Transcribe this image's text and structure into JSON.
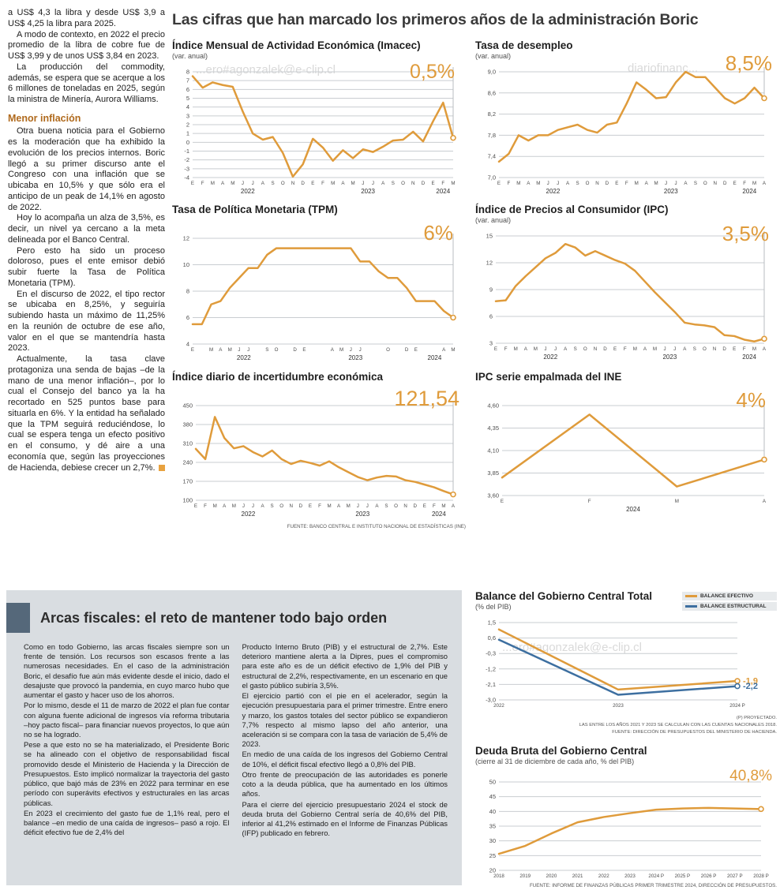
{
  "page": {
    "headline": "Las cifras que han marcado los primeros años de la administración Boric",
    "watermark_a": "...ero#agonzalek@e-clip.cl",
    "watermark_b": "diariofinanc..."
  },
  "colors": {
    "orange": "#DF9B3B",
    "blue": "#3D6FA0",
    "gray_panel": "#D9DDE1",
    "accent_bar": "#55687A",
    "subhead": "#B06A1D"
  },
  "left_column": {
    "paragraphs_top": [
      "a US$ 4,3 la libra y desde US$ 3,9 a US$ 4,25 la libra para 2025.",
      "A modo de contexto, en 2022 el precio promedio de la libra de cobre fue de US$ 3,99 y de unos US$ 3,84 en 2023.",
      "La producción del commodity, además, se espera que se acerque a los 6 millones de toneladas en 2025, según la ministra de Minería, Aurora Williams."
    ],
    "subhead": "Menor inflación",
    "paragraphs_bottom": [
      "Otra buena noticia para el Gobierno es la moderación que ha exhibido la evolución de los precios internos. Boric llegó a su primer discurso ante el Congreso con una inflación que se ubicaba en 10,5% y que sólo era el anticipo de un peak de 14,1% en agosto de 2022.",
      "Hoy lo acompaña un alza de 3,5%, es decir, un nivel ya cercano a la meta delineada por el Banco Central.",
      "Pero esto ha sido un proceso doloroso, pues el ente emisor debió subir fuerte la Tasa de Política Monetaria (TPM).",
      "En el discurso de 2022, el tipo rector se ubicaba en 8,25%, y seguiría subiendo hasta un máximo de 11,25% en la reunión de octubre de ese año, valor en el que se mantendría hasta 2023.",
      "Actualmente, la tasa clave protagoniza una senda de bajas –de la mano de una menor inflación–, por lo cual el Consejo del banco ya la ha recortado en 525 puntos base para situarla en 6%. Y la entidad ha señalado que la TPM seguirá reduciéndose, lo cual se espera tenga un efecto positivo en el consumo, y dé aire a una economía que, según las proyecciones de Hacienda, debiese crecer un 2,7%."
    ]
  },
  "fiscal_article": {
    "title": "Arcas fiscales: el reto de mantener todo bajo orden",
    "col1": [
      "Como en todo Gobierno, las arcas fiscales siempre son un frente de tensión. Los recursos son escasos frente a las numerosas necesidades. En el caso de la administración Boric, el desafío fue aún más evidente desde el inicio, dado el desajuste que provocó la pandemia, en cuyo marco hubo que aumentar el gasto y hacer uso de los ahorros.",
      "Por lo mismo, desde el 11 de marzo de 2022 el plan fue contar con alguna fuente adicional de ingresos vía reforma tributaria –hoy pacto fiscal– para financiar nuevos proyectos, lo que aún no se ha logrado.",
      "Pese a que esto no se ha materializado, el Presidente Boric se ha alineado con el objetivo de responsabilidad fiscal promovido desde el Ministerio de Hacienda y la Dirección de Presupuestos. Esto implicó normalizar la trayectoria del gasto público, que bajó más de 23% en 2022 para terminar en ese período con superávits efectivos y estructurales en las arcas públicas.",
      "En 2023 el crecimiento del gasto fue de 1,1% real, pero el balance –en medio de una caída de ingresos– pasó a rojo. El déficit efectivo fue de 2,4% del"
    ],
    "col2": [
      "Producto Interno Bruto (PIB) y el estructural de 2,7%. Este deterioro mantiene alerta a la Dipres, pues el compromiso para este año es de un déficit efectivo de 1,9% del PIB y estructural de 2,2%, respectivamente, en un escenario en que el gasto público subiría 3,5%.",
      "El ejercicio partió con el pie en el acelerador, según la ejecución presupuestaria para el primer trimestre. Entre enero y marzo, los gastos totales del sector público se expandieron 7,7% respecto al mismo lapso del año anterior, una aceleración si se compara con la tasa de variación de 5,4% de 2023.",
      "En medio de una caída de los ingresos del Gobierno Central de 10%, el déficit fiscal efectivo llegó a 0,8% del PIB.",
      "Otro frente de preocupación de las autoridades es ponerle coto a la deuda pública, que ha aumentado en los últimos años.",
      "Para el cierre del ejercicio presupuestario 2024 el stock de deuda bruta del Gobierno Central sería de 40,6% del PIB, inferior al 41,2% estimado en el Informe de Finanzas Públicas (IFP) publicado en febrero."
    ]
  },
  "chart_data": [
    {
      "type": "line",
      "title": "Índice Mensual de Actividad Económica (Imacec)",
      "subtitle": "(var. anual)",
      "big_label": "0,5%",
      "color": "#DF9B3B",
      "ylim": [
        -4,
        8
      ],
      "yticks": [
        8,
        7,
        6,
        5,
        4,
        3,
        2,
        1,
        0,
        -1,
        -2,
        -3,
        -4
      ],
      "ytick_labels": [
        "8",
        "7",
        "6",
        "5",
        "4",
        "3",
        "2",
        "1",
        "0",
        "-1",
        "-2",
        "-3",
        "-4"
      ],
      "x_labels": [
        "E",
        "F",
        "M",
        "A",
        "M",
        "J",
        "J",
        "A",
        "S",
        "O",
        "N",
        "D",
        "E",
        "F",
        "M",
        "A",
        "M",
        "J",
        "J",
        "A",
        "S",
        "O",
        "N",
        "D",
        "E",
        "F",
        "M"
      ],
      "years": [
        {
          "label": "2022",
          "center": 5.5
        },
        {
          "label": "2023",
          "center": 17.5
        },
        {
          "label": "2024",
          "center": 25
        }
      ],
      "values": [
        7.5,
        6.2,
        6.8,
        6.5,
        6.3,
        3.5,
        1.0,
        0.3,
        0.6,
        -1.2,
        -3.9,
        -2.5,
        0.4,
        -0.6,
        -2.1,
        -0.9,
        -1.8,
        -0.8,
        -1.1,
        -0.5,
        0.2,
        0.3,
        1.2,
        0.1,
        2.4,
        4.5,
        0.5
      ],
      "drop_line": true
    },
    {
      "type": "line",
      "title": "Tasa de desempleo",
      "subtitle": "(var. anual)",
      "big_label": "8,5%",
      "color": "#DF9B3B",
      "ylim": [
        7.0,
        9.0
      ],
      "yticks": [
        9.0,
        8.6,
        8.2,
        7.8,
        7.4,
        7.0
      ],
      "ytick_labels": [
        "9,0",
        "8,6",
        "8,2",
        "7,8",
        "7,4",
        "7,0"
      ],
      "x_labels": [
        "E",
        "F",
        "M",
        "A",
        "M",
        "J",
        "J",
        "A",
        "S",
        "O",
        "N",
        "D",
        "E",
        "F",
        "M",
        "A",
        "M",
        "J",
        "J",
        "A",
        "S",
        "O",
        "N",
        "D",
        "E",
        "F",
        "M",
        "A"
      ],
      "years": [
        {
          "label": "2022",
          "center": 5.5
        },
        {
          "label": "2023",
          "center": 17.5
        },
        {
          "label": "2024",
          "center": 25.5
        }
      ],
      "values": [
        7.3,
        7.45,
        7.8,
        7.7,
        7.8,
        7.8,
        7.9,
        7.95,
        8.0,
        7.9,
        7.85,
        8.0,
        8.04,
        8.4,
        8.8,
        8.66,
        8.5,
        8.52,
        8.8,
        9.0,
        8.9,
        8.9,
        8.7,
        8.5,
        8.4,
        8.5,
        8.7,
        8.5
      ],
      "drop_line": true
    },
    {
      "type": "line",
      "title": "Tasa de Política Monetaria (TPM)",
      "big_label": "6%",
      "color": "#DF9B3B",
      "ylim": [
        4,
        12
      ],
      "yticks": [
        12,
        10,
        8,
        6,
        4
      ],
      "ytick_labels": [
        "12",
        "10",
        "8",
        "6",
        "4"
      ],
      "x_labels": [
        "E",
        "",
        "M",
        "A",
        "M",
        "J",
        "J",
        "",
        "S",
        "O",
        "",
        "D",
        "E",
        "",
        "",
        "A",
        "M",
        "J",
        "J",
        "",
        "",
        "O",
        "",
        "D",
        "E",
        "",
        "",
        "A",
        "M"
      ],
      "years": [
        {
          "label": "2022",
          "center": 5.5
        },
        {
          "label": "2023",
          "center": 17.5
        },
        {
          "label": "2024",
          "center": 26
        }
      ],
      "values": [
        5.5,
        5.5,
        7.0,
        7.25,
        8.25,
        9.0,
        9.75,
        9.75,
        10.75,
        11.25,
        11.25,
        11.25,
        11.25,
        11.25,
        11.25,
        11.25,
        11.25,
        11.25,
        10.25,
        10.25,
        9.5,
        9.0,
        9.0,
        8.25,
        7.25,
        7.25,
        7.25,
        6.5,
        6.0
      ],
      "drop_line": true
    },
    {
      "type": "line",
      "title": "Índice de Precios al Consumidor (IPC)",
      "subtitle": "(var. anual)",
      "big_label": "3,5%",
      "color": "#DF9B3B",
      "ylim": [
        3,
        15
      ],
      "yticks": [
        15,
        12,
        9,
        6,
        3
      ],
      "ytick_labels": [
        "15",
        "12",
        "9",
        "6",
        "3"
      ],
      "x_labels": [
        "E",
        "F",
        "M",
        "A",
        "M",
        "J",
        "J",
        "A",
        "S",
        "O",
        "N",
        "D",
        "E",
        "F",
        "M",
        "A",
        "M",
        "J",
        "J",
        "A",
        "S",
        "O",
        "N",
        "D",
        "E",
        "F",
        "M",
        "A"
      ],
      "years": [
        {
          "label": "2022",
          "center": 5.5
        },
        {
          "label": "2023",
          "center": 17.5
        },
        {
          "label": "2024",
          "center": 25.5
        }
      ],
      "values": [
        7.7,
        7.8,
        9.4,
        10.5,
        11.5,
        12.5,
        13.1,
        14.1,
        13.7,
        12.8,
        13.3,
        12.8,
        12.3,
        11.9,
        11.1,
        9.9,
        8.7,
        7.6,
        6.5,
        5.3,
        5.1,
        5.0,
        4.8,
        3.9,
        3.8,
        3.4,
        3.2,
        3.5
      ],
      "drop_line": true
    },
    {
      "type": "line",
      "title": "Índice diario de incertidumbre económica",
      "big_label": "121,54",
      "color": "#DF9B3B",
      "ylim": [
        100,
        450
      ],
      "yticks": [
        450,
        380,
        310,
        240,
        170,
        100
      ],
      "ytick_labels": [
        "450",
        "380",
        "310",
        "240",
        "170",
        "100"
      ],
      "x_labels": [
        "E",
        "F",
        "M",
        "A",
        "M",
        "J",
        "J",
        "A",
        "S",
        "O",
        "N",
        "D",
        "E",
        "F",
        "M",
        "A",
        "M",
        "J",
        "J",
        "A",
        "S",
        "O",
        "N",
        "D",
        "E",
        "F",
        "M",
        "A"
      ],
      "years": [
        {
          "label": "2022",
          "center": 5.5
        },
        {
          "label": "2023",
          "center": 17.5
        },
        {
          "label": "2024",
          "center": 25.5
        }
      ],
      "values": [
        290,
        252,
        408,
        330,
        292,
        300,
        278,
        262,
        284,
        252,
        234,
        246,
        238,
        228,
        244,
        222,
        204,
        186,
        174,
        184,
        190,
        188,
        174,
        168,
        158,
        148,
        134,
        121.54
      ],
      "drop_line": true,
      "source": "FUENTE: BANCO CENTRAL E INSTITUTO NACIONAL DE ESTADÍSTICAS (INE)"
    },
    {
      "type": "line",
      "title": "IPC serie empalmada del INE",
      "big_label": "4%",
      "color": "#DF9B3B",
      "ylim": [
        3.6,
        4.6
      ],
      "yticks": [
        4.6,
        4.35,
        4.1,
        3.85,
        3.6
      ],
      "ytick_labels": [
        "4,60",
        "4,35",
        "4,10",
        "3,85",
        "3,60"
      ],
      "x_labels": [
        "E",
        "F",
        "M",
        "A"
      ],
      "years": [
        {
          "label": "2024",
          "center": 1.5
        }
      ],
      "values": [
        3.8,
        4.5,
        3.7,
        4.0
      ],
      "drop_line": true
    },
    {
      "type": "line",
      "title": "Balance del Gobierno Central Total",
      "subtitle": "(% del PIB)",
      "ylim": [
        -3.0,
        1.5
      ],
      "yticks": [
        1.5,
        0.6,
        -0.3,
        -1.2,
        -2.1,
        -3.0
      ],
      "ytick_labels": [
        "1,5",
        "0,6",
        "-0,3",
        "-1,2",
        "-2,1",
        "-3,0"
      ],
      "x_labels": [
        "2022",
        "2023",
        "2024 P"
      ],
      "series": [
        {
          "name": "BALANCE EFECTIVO",
          "color": "#DF9B3B",
          "values": [
            1.1,
            -2.4,
            -1.9
          ]
        },
        {
          "name": "BALANCE ESTRUCTURAL",
          "color": "#3D6FA0",
          "values": [
            0.5,
            -2.7,
            -2.2
          ]
        }
      ],
      "end_labels": [
        "-1,9",
        "-2,2"
      ],
      "notes": [
        "(P) PROYECTADO.",
        "LAS ENTRE LOS AÑOS 2021 Y 2023 SE CALCULAN CON LAS CUENTAS NACIONALES 2018.",
        "FUENTE: DIRECCIÓN DE PRESUPUESTOS DEL MINISTERIO DE HACIENDA."
      ]
    },
    {
      "type": "line",
      "title": "Deuda Bruta del Gobierno Central",
      "subtitle": "(cierre al 31 de diciembre de cada año, % del PIB)",
      "big_label": "40,8%",
      "color": "#DF9B3B",
      "ylim": [
        20,
        50
      ],
      "yticks": [
        50,
        45,
        40,
        35,
        30,
        25,
        20
      ],
      "ytick_labels": [
        "50",
        "45",
        "40",
        "35",
        "30",
        "25",
        "20"
      ],
      "x_labels": [
        "2018",
        "2019",
        "2020",
        "2021",
        "2022",
        "2023",
        "2024 P",
        "2025 P",
        "2026 P",
        "2027 P",
        "2028 P"
      ],
      "values": [
        25.6,
        28.3,
        32.5,
        36.3,
        38.1,
        39.4,
        40.6,
        41.0,
        41.2,
        41.0,
        40.8
      ],
      "source": "FUENTE: INFORME DE FINANZAS PÚBLICAS PRIMER TRIMESTRE 2024, DIRECCIÓN DE PRESUPUESTOS."
    }
  ]
}
